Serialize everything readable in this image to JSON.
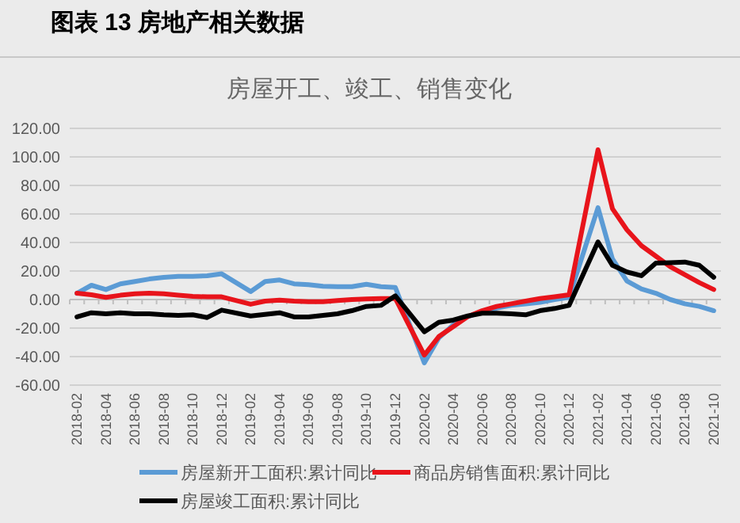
{
  "chart_data": {
    "type": "line",
    "title": "图表 13 房地产相关数据",
    "subtitle": "房屋开工、竣工、销售变化",
    "categories": [
      "2018-02",
      null,
      "2018-04",
      null,
      "2018-06",
      null,
      "2018-08",
      null,
      "2018-10",
      null,
      "2018-12",
      null,
      "2019-02",
      null,
      "2019-04",
      null,
      "2019-06",
      null,
      "2019-08",
      null,
      "2019-10",
      null,
      "2019-12",
      null,
      "2020-02",
      null,
      "2020-04",
      null,
      "2020-06",
      null,
      "2020-08",
      null,
      "2020-10",
      null,
      "2020-12",
      null,
      "2021-02",
      null,
      "2021-04",
      null,
      "2021-06",
      null,
      "2021-08",
      null,
      "2021-10"
    ],
    "series": [
      {
        "name": "房屋新开工面积:累计同比",
        "color": "#5b9bd5",
        "values": [
          4.4,
          10,
          7,
          11,
          12.6,
          14.4,
          15.6,
          16.3,
          16.3,
          16.7,
          18,
          null,
          5.6,
          12.6,
          13.7,
          11,
          10.4,
          9.3,
          9,
          9,
          10.7,
          9,
          8.5,
          null,
          -44.4,
          -27,
          -17.8,
          -12,
          -8.5,
          -6,
          -4,
          -3,
          -2,
          0,
          1.5,
          null,
          64.4,
          28.5,
          13,
          7.4,
          4.4,
          0,
          -3,
          -4.8,
          -7.8
        ]
      },
      {
        "name": "商品房销售面积:累计同比",
        "color": "#e8141b",
        "values": [
          4.4,
          3.3,
          1.5,
          3,
          4,
          4.4,
          4,
          3,
          2.2,
          1.9,
          1.9,
          null,
          -3.3,
          -1.1,
          -0.4,
          -1.1,
          -1.5,
          -1.5,
          -0.7,
          0,
          0.4,
          0.7,
          0.7,
          null,
          -39,
          -26,
          -19,
          -12,
          -7.8,
          -4.8,
          -3,
          -1.1,
          0.7,
          1.9,
          3.3,
          null,
          105,
          63.7,
          48.9,
          37.8,
          30.4,
          23,
          17.4,
          11.9,
          7
        ]
      },
      {
        "name": "房屋竣工面积:累计同比",
        "color": "#000000",
        "values": [
          -12.2,
          -9.3,
          -10,
          -9.3,
          -10,
          -10,
          -10.7,
          -11.1,
          -10.7,
          -12.6,
          -7.4,
          null,
          -11.5,
          -10.4,
          -9.3,
          -12.2,
          -12.2,
          -11.1,
          -10,
          -7.8,
          -4.8,
          -4.1,
          2.6,
          null,
          -22.6,
          -16,
          -14.4,
          -11.5,
          -9.6,
          -9.6,
          -10,
          -10.7,
          -7.8,
          -6.3,
          -4.1,
          null,
          40.4,
          24,
          19.3,
          16.7,
          25.6,
          25.9,
          26.3,
          24,
          15.6
        ]
      }
    ],
    "ylim": [
      -60,
      120
    ],
    "yticks": [
      {
        "value": -60,
        "label": "-60.00"
      },
      {
        "value": -40,
        "label": "-40.00"
      },
      {
        "value": -20,
        "label": "-20.00"
      },
      {
        "value": 0,
        "label": "0.00"
      },
      {
        "value": 20,
        "label": "20.00"
      },
      {
        "value": 40,
        "label": "40.00"
      },
      {
        "value": 60,
        "label": "60.00"
      },
      {
        "value": 80,
        "label": "80.00"
      },
      {
        "value": 100,
        "label": "100.00"
      },
      {
        "value": 120,
        "label": "120.00"
      }
    ],
    "grid": "y",
    "legend": "bottom",
    "marker": "none",
    "line_style": "solid"
  }
}
